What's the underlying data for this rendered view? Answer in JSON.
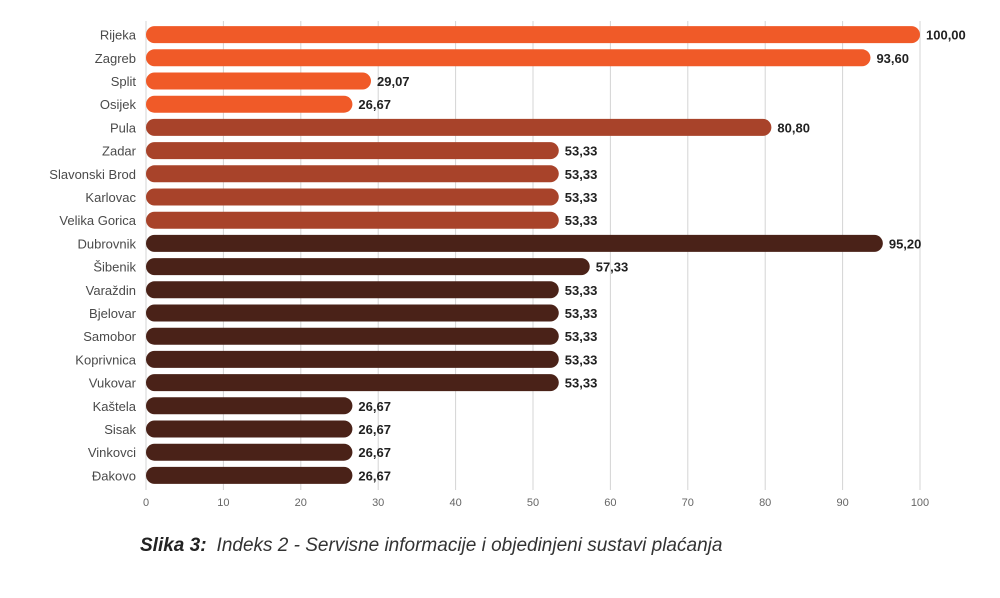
{
  "chart_data": {
    "type": "bar",
    "orientation": "horizontal",
    "categories": [
      "Rijeka",
      "Zagreb",
      "Split",
      "Osijek",
      "Pula",
      "Zadar",
      "Slavonski Brod",
      "Karlovac",
      "Velika Gorica",
      "Dubrovnik",
      "Šibenik",
      "Varaždin",
      "Bjelovar",
      "Samobor",
      "Koprivnica",
      "Vukovar",
      "Kaštela",
      "Sisak",
      "Vinkovci",
      "Đakovo"
    ],
    "values": [
      100.0,
      93.6,
      29.07,
      26.67,
      80.8,
      53.33,
      53.33,
      53.33,
      53.33,
      95.2,
      57.33,
      53.33,
      53.33,
      53.33,
      53.33,
      53.33,
      26.67,
      26.67,
      26.67,
      26.67
    ],
    "value_labels": [
      "100,00",
      "93,60",
      "29,07",
      "26,67",
      "80,80",
      "53,33",
      "53,33",
      "53,33",
      "53,33",
      "95,20",
      "57,33",
      "53,33",
      "53,33",
      "53,33",
      "53,33",
      "53,33",
      "26,67",
      "26,67",
      "26,67",
      "26,67"
    ],
    "colors": [
      "#f05a28",
      "#f05a28",
      "#f05a28",
      "#f05a28",
      "#a8432a",
      "#a8432a",
      "#a8432a",
      "#a8432a",
      "#a8432a",
      "#4a2218",
      "#4a2218",
      "#4a2218",
      "#4a2218",
      "#4a2218",
      "#4a2218",
      "#4a2218",
      "#4a2218",
      "#4a2218",
      "#4a2218",
      "#4a2218"
    ],
    "xlim": [
      0,
      100
    ],
    "xticks": [
      0,
      10,
      20,
      30,
      40,
      50,
      60,
      70,
      80,
      90,
      100
    ],
    "grid": true,
    "title": "",
    "xlabel": "",
    "ylabel": ""
  },
  "caption": {
    "prefix": "Slika 3:",
    "text": "Indeks 2 - Servisne informacije i objedinjeni sustavi plaćanja"
  }
}
